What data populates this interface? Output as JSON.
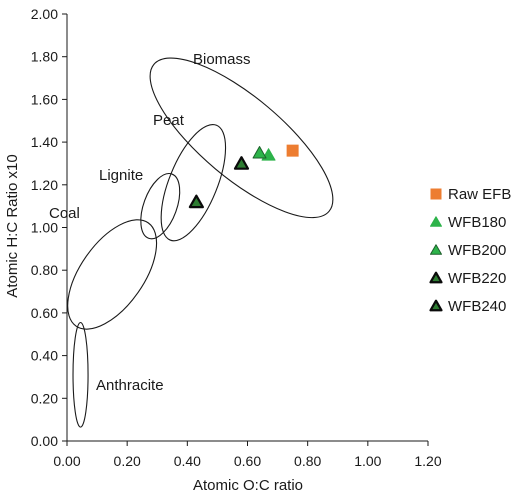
{
  "chart_data": {
    "type": "scatter",
    "title": "",
    "xlabel": "Atomic O:C ratio",
    "ylabel": "Atomic H:C Ratio x10",
    "xlim": [
      0,
      1.2
    ],
    "ylim": [
      0,
      2.0
    ],
    "xticks": [
      "0.00",
      "0.20",
      "0.40",
      "0.60",
      "0.80",
      "1.00",
      "1.20"
    ],
    "yticks": [
      "0.00",
      "0.20",
      "0.40",
      "0.60",
      "0.80",
      "1.00",
      "1.20",
      "1.40",
      "1.60",
      "1.80",
      "2.00"
    ],
    "grid": false,
    "legend_position": "right",
    "regions": [
      {
        "name": "Anthracite",
        "center": [
          0.045,
          0.31
        ],
        "rx": 0.025,
        "ry": 0.245
      },
      {
        "name": "Coal",
        "center": [
          0.15,
          0.78
        ],
        "rx": 0.105,
        "ry": 0.295,
        "angle_deg": 35
      },
      {
        "name": "Lignite",
        "center": [
          0.31,
          1.1
        ],
        "rx": 0.055,
        "ry": 0.16,
        "angle_deg": 20
      },
      {
        "name": "Peat",
        "center": [
          0.42,
          1.21
        ],
        "rx": 0.08,
        "ry": 0.29,
        "angle_deg": 22
      },
      {
        "name": "Biomass",
        "center": [
          0.58,
          1.42
        ],
        "rx": 0.38,
        "ry": 0.19,
        "angle_deg": 40
      }
    ],
    "series": [
      {
        "name": "Raw EFB",
        "marker": "square",
        "color": "#ED7D31",
        "edge": "#ED7D31",
        "points": [
          [
            0.75,
            1.36
          ]
        ]
      },
      {
        "name": "WFB180",
        "marker": "triangle",
        "color": "#2DB34A",
        "edge": "#2DB34A",
        "points": [
          [
            0.67,
            1.34
          ]
        ]
      },
      {
        "name": "WFB200",
        "marker": "triangle",
        "color": "#2DB34A",
        "edge": "#1d5f2b",
        "points": [
          [
            0.64,
            1.35
          ]
        ]
      },
      {
        "name": "WFB220",
        "marker": "triangle",
        "color": "#2E7D32",
        "edge": "#0b0b0b",
        "points": [
          [
            0.58,
            1.3
          ]
        ]
      },
      {
        "name": "WFB240",
        "marker": "triangle",
        "color": "#2E7D32",
        "edge": "#0b0b0b",
        "points": [
          [
            0.43,
            1.12
          ]
        ]
      }
    ]
  }
}
